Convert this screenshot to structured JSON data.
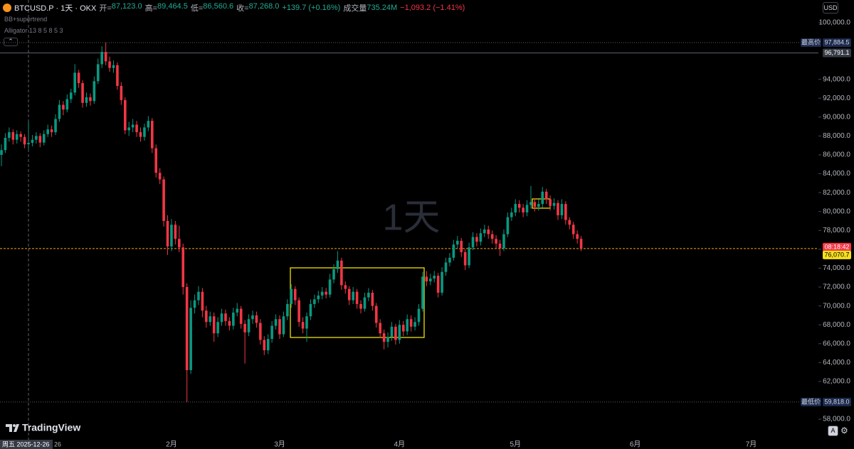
{
  "header": {
    "symbol": "BTCUSD.P · 1天 · OKX",
    "legend": [
      {
        "label": "开=",
        "value": "87,123.0"
      },
      {
        "label": "高=",
        "value": "89,464.5"
      },
      {
        "label": "低=",
        "value": "86,560.6"
      },
      {
        "label": "收=",
        "value": "87,268.0"
      }
    ],
    "change": "+139.7 (+0.16%)",
    "volume_label": "成交量",
    "volume": "735.24M",
    "volume_change": "−1,093.2 (−1.41%)"
  },
  "indicators": [
    "BB+supertrend",
    "Alligator 13 8 5 8 5 3"
  ],
  "currency": "USD",
  "watermark": "1天",
  "logo": "TradingView",
  "crosshair_date": "周五 2025-12-26",
  "date_tail": "26",
  "auto_button": "A",
  "chart_data": {
    "type": "candlestick",
    "up_color": "#089981",
    "down_color": "#f23645",
    "grid": false,
    "xlim": [
      -0.37,
      211.4
    ],
    "ylim": [
      55750,
      102400
    ],
    "xticks": [
      {
        "value": 44,
        "label": "2月"
      },
      {
        "value": 72,
        "label": "3月"
      },
      {
        "value": 103,
        "label": "4月"
      },
      {
        "value": 133,
        "label": "5月"
      },
      {
        "value": 164,
        "label": "6月"
      },
      {
        "value": 194,
        "label": "7月"
      }
    ],
    "yticks": [
      {
        "value": 100000,
        "label": "100,000.0"
      },
      {
        "value": 94000,
        "label": "94,000.0"
      },
      {
        "value": 92000,
        "label": "92,000.0"
      },
      {
        "value": 90000,
        "label": "90,000.0"
      },
      {
        "value": 88000,
        "label": "88,000.0"
      },
      {
        "value": 86000,
        "label": "86,000.0"
      },
      {
        "value": 84000,
        "label": "84,000.0"
      },
      {
        "value": 82000,
        "label": "82,000.0"
      },
      {
        "value": 80000,
        "label": "80,000.0"
      },
      {
        "value": 78000,
        "label": "78,000.0"
      },
      {
        "value": 76000,
        "label": "76,000.0"
      },
      {
        "value": 74000,
        "label": "74,000.0"
      },
      {
        "value": 72000,
        "label": "72,000.0"
      },
      {
        "value": 70000,
        "label": "70,000.0"
      },
      {
        "value": 68000,
        "label": "68,000.0"
      },
      {
        "value": 66000,
        "label": "66,000.0"
      },
      {
        "value": 64000,
        "label": "64,000.0"
      },
      {
        "value": 62000,
        "label": "62,000.0"
      },
      {
        "value": 58000,
        "label": "58,000.0"
      }
    ],
    "open": [
      86000,
      86500,
      87800,
      88400,
      87600,
      88200,
      87900,
      87123,
      87268,
      87600,
      88000,
      87300,
      88200,
      88700,
      88400,
      89800,
      91300,
      90800,
      91900,
      92600,
      94700,
      93600,
      91500,
      92100,
      91700,
      93800,
      95600,
      96900,
      95900,
      95200,
      95500,
      93300,
      91800,
      88600,
      88900,
      89200,
      88400,
      87900,
      88900,
      89600,
      86700,
      84100,
      83400,
      79000,
      76300,
      78600,
      77100,
      76200,
      72000,
      63200,
      69800,
      70600,
      71500,
      69500,
      68300,
      68900,
      67100,
      68300,
      69200,
      68400,
      67900,
      69300,
      69700,
      68100,
      67200,
      68600,
      69000,
      68200,
      66400,
      65300,
      66500,
      67900,
      68600,
      67000,
      68900,
      70200,
      71800,
      70600,
      68300,
      67600,
      68900,
      70200,
      70700,
      71100,
      71500,
      71200,
      72800,
      73900,
      74800,
      72200,
      71800,
      70600,
      71500,
      70200,
      69700,
      70900,
      71400,
      70000,
      68200,
      67100,
      66200,
      66700,
      67800,
      66400,
      68000,
      67300,
      68600,
      67800,
      68300,
      69700,
      73100,
      72600,
      72900,
      73200,
      71400,
      73600,
      74600,
      75100,
      76500,
      76900,
      75700,
      74300,
      76200,
      77300,
      76800,
      77700,
      78100,
      77600,
      77100,
      76600,
      76100,
      77600,
      79400,
      79900,
      80800,
      80400,
      79900,
      80700,
      81000,
      80500,
      80800,
      82100,
      81300,
      80600,
      80900,
      79600,
      80800,
      79100,
      78600,
      77600,
      77100
    ],
    "high": [
      87100,
      88300,
      88900,
      88700,
      88600,
      88500,
      88200,
      89464.5,
      88100,
      88400,
      88300,
      88600,
      89200,
      89100,
      90300,
      91800,
      91700,
      92400,
      93000,
      95600,
      95000,
      93900,
      92600,
      92500,
      94300,
      96200,
      97500,
      97884.5,
      96400,
      96000,
      95800,
      93700,
      92100,
      89500,
      89800,
      89600,
      88900,
      89300,
      90100,
      89900,
      87100,
      84600,
      83700,
      79600,
      79200,
      79000,
      78500,
      76600,
      72400,
      70600,
      71200,
      72100,
      71900,
      70000,
      69400,
      69300,
      68800,
      69700,
      69600,
      68800,
      69800,
      70300,
      70000,
      68500,
      69100,
      69500,
      69400,
      68600,
      66800,
      67000,
      68400,
      69100,
      69000,
      69400,
      70700,
      72300,
      72100,
      70900,
      68800,
      69300,
      70700,
      71200,
      71600,
      72000,
      71900,
      73400,
      74400,
      75800,
      75100,
      72600,
      72100,
      72000,
      71800,
      70600,
      71400,
      71900,
      71700,
      70300,
      68600,
      67500,
      67200,
      68300,
      68100,
      68500,
      68400,
      69100,
      69000,
      68800,
      70200,
      73600,
      73700,
      73400,
      73700,
      73500,
      74100,
      75100,
      75600,
      77000,
      77400,
      77200,
      76000,
      76700,
      77800,
      77700,
      78200,
      78600,
      78500,
      78000,
      77500,
      77000,
      78100,
      79900,
      80400,
      81300,
      81200,
      80800,
      81200,
      82700,
      81400,
      81300,
      82600,
      82400,
      81700,
      81400,
      81200,
      81300,
      81100,
      79400,
      78900,
      78000,
      77400
    ],
    "low": [
      84800,
      86200,
      87400,
      87100,
      87200,
      87400,
      86700,
      86560.6,
      86900,
      87200,
      86800,
      87000,
      87900,
      87900,
      88100,
      89500,
      90200,
      90500,
      91500,
      92300,
      93100,
      91000,
      91100,
      91200,
      91400,
      93500,
      95200,
      95500,
      94800,
      94700,
      92900,
      91300,
      88200,
      88000,
      88400,
      87900,
      87400,
      87500,
      88500,
      86200,
      83600,
      82900,
      78400,
      75400,
      75800,
      76500,
      75700,
      71200,
      59818,
      62800,
      69200,
      70100,
      68800,
      67700,
      67900,
      66200,
      66700,
      67900,
      67900,
      67400,
      67500,
      68900,
      67600,
      63900,
      66800,
      68100,
      67700,
      65900,
      64800,
      64900,
      66100,
      67500,
      66500,
      66700,
      68500,
      69800,
      70100,
      67800,
      67100,
      66200,
      68500,
      69800,
      70300,
      70700,
      70800,
      70900,
      72400,
      73500,
      71700,
      71300,
      70100,
      70200,
      69700,
      69200,
      69400,
      70500,
      69500,
      67700,
      66600,
      65400,
      65600,
      66300,
      65900,
      66000,
      66800,
      66900,
      67300,
      67400,
      67900,
      69400,
      72100,
      72200,
      72500,
      70900,
      71100,
      73200,
      74200,
      74800,
      76100,
      75200,
      73800,
      74000,
      75900,
      76300,
      76400,
      77300,
      77100,
      76600,
      76100,
      75300,
      75800,
      77300,
      79000,
      79500,
      79900,
      79400,
      79500,
      80300,
      80000,
      80100,
      80400,
      80800,
      80100,
      80200,
      79100,
      79200,
      78600,
      78100,
      77100,
      76600,
      75800
    ],
    "close": [
      86500,
      87800,
      88400,
      87600,
      88200,
      87900,
      87100,
      87268,
      87600,
      88000,
      87300,
      88200,
      88700,
      88400,
      89800,
      91300,
      90800,
      91900,
      92600,
      94700,
      93600,
      91500,
      92100,
      91700,
      93800,
      95600,
      96900,
      95900,
      95200,
      95500,
      93300,
      91800,
      88600,
      88900,
      89200,
      88400,
      87900,
      88900,
      89600,
      86700,
      84100,
      83400,
      79000,
      76300,
      78600,
      77100,
      76200,
      72000,
      63200,
      69800,
      70600,
      71500,
      69500,
      68300,
      68900,
      67100,
      68300,
      69200,
      68400,
      67900,
      69300,
      69700,
      68100,
      67200,
      68600,
      69000,
      68200,
      66400,
      65300,
      66500,
      67900,
      68600,
      67000,
      68900,
      70200,
      71800,
      70600,
      68300,
      67600,
      68900,
      70200,
      70700,
      71100,
      71500,
      71200,
      72800,
      73900,
      74800,
      72200,
      71800,
      70600,
      71500,
      70200,
      69700,
      70900,
      71400,
      70000,
      68200,
      67100,
      66200,
      66700,
      67800,
      66400,
      68000,
      67300,
      68600,
      67800,
      68300,
      69700,
      73100,
      72600,
      72900,
      73200,
      71400,
      73600,
      74600,
      75100,
      76500,
      76900,
      75700,
      74300,
      76200,
      77300,
      76800,
      77700,
      78100,
      77600,
      77100,
      76600,
      76100,
      77600,
      79400,
      79900,
      80800,
      80400,
      79900,
      80700,
      81000,
      80500,
      80800,
      82100,
      81300,
      80600,
      80900,
      79600,
      80800,
      79100,
      78600,
      77600,
      77100,
      76070.7
    ],
    "high_marker_label": "最高价",
    "high_value_label": "97,884.5",
    "low_marker_label": "最低价",
    "low_value_label": "59,818.0",
    "crosshair_price": 96791.1,
    "crosshair_price_label": "96,791.1",
    "last_price_label": "76,070.7",
    "countdown": "08:18:42"
  }
}
